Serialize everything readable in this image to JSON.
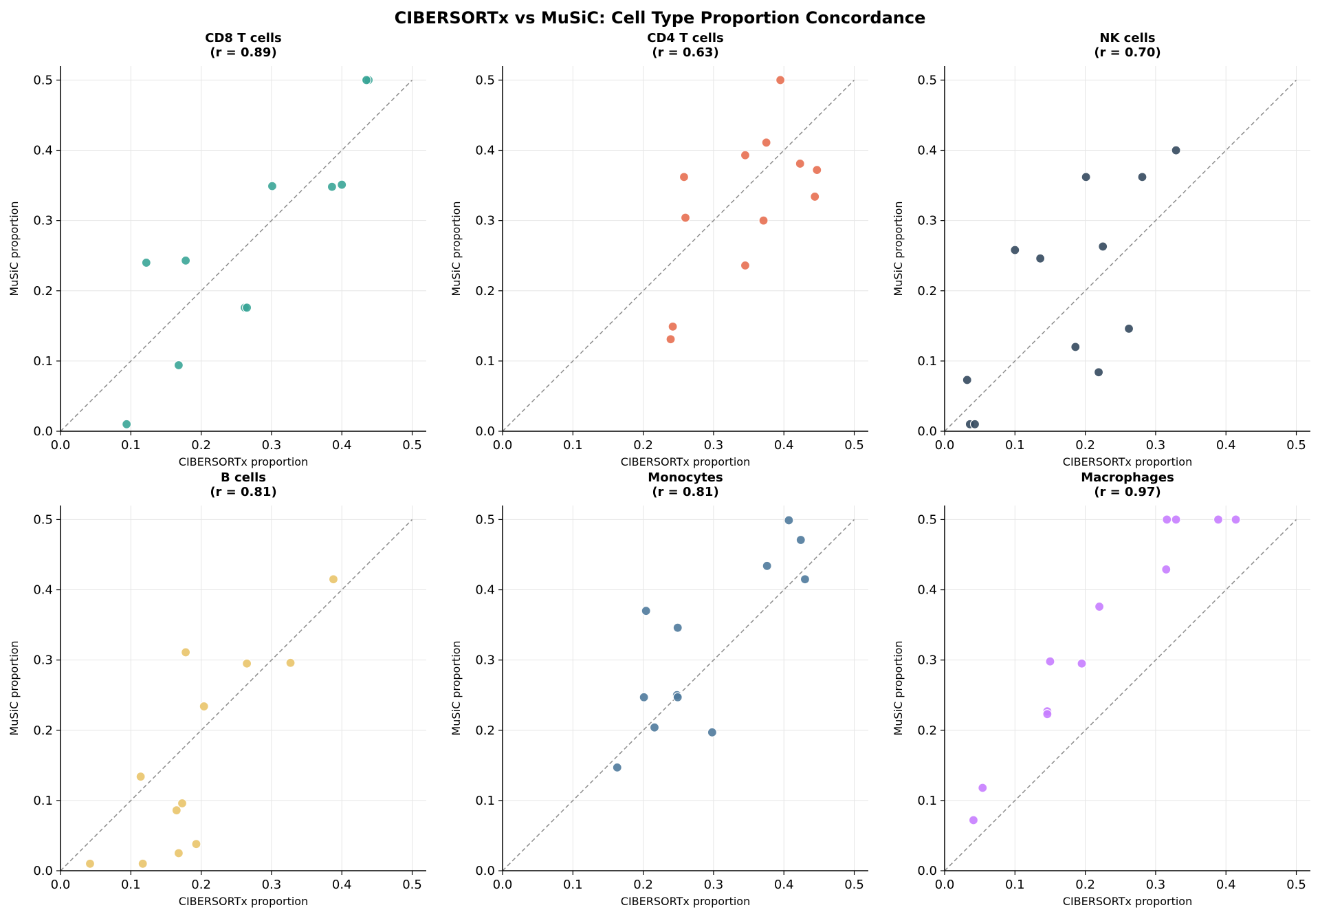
{
  "figure": {
    "title": "CIBERSORTx vs MuSiC: Cell Type Proportion Concordance"
  },
  "chart_data": [
    {
      "type": "scatter",
      "title": "CD8 T cells",
      "subtitle": "(r = 0.89)",
      "xlabel": "CIBERSORTx proportion",
      "ylabel": "MuSiC proportion",
      "xlim": [
        0,
        0.52
      ],
      "ylim": [
        0,
        0.52
      ],
      "xticks": [
        "0.0",
        "0.1",
        "0.2",
        "0.3",
        "0.4",
        "0.5"
      ],
      "yticks": [
        "0.0",
        "0.1",
        "0.2",
        "0.3",
        "0.4",
        "0.5"
      ],
      "grid": true,
      "color": "#3aa597",
      "points": [
        {
          "x": 0.434,
          "y": 0.5
        },
        {
          "x": 0.438,
          "y": 0.5
        },
        {
          "x": 0.435,
          "y": 0.5
        },
        {
          "x": 0.301,
          "y": 0.349
        },
        {
          "x": 0.386,
          "y": 0.348
        },
        {
          "x": 0.4,
          "y": 0.351
        },
        {
          "x": 0.178,
          "y": 0.243
        },
        {
          "x": 0.122,
          "y": 0.24
        },
        {
          "x": 0.262,
          "y": 0.176
        },
        {
          "x": 0.265,
          "y": 0.176
        },
        {
          "x": 0.168,
          "y": 0.094
        },
        {
          "x": 0.094,
          "y": 0.01
        }
      ]
    },
    {
      "type": "scatter",
      "title": "CD4 T cells",
      "subtitle": "(r = 0.63)",
      "xlabel": "CIBERSORTx proportion",
      "ylabel": "MuSiC proportion",
      "xlim": [
        0,
        0.52
      ],
      "ylim": [
        0,
        0.52
      ],
      "xticks": [
        "0.0",
        "0.1",
        "0.2",
        "0.3",
        "0.4",
        "0.5"
      ],
      "yticks": [
        "0.0",
        "0.1",
        "0.2",
        "0.3",
        "0.4",
        "0.5"
      ],
      "grid": true,
      "color": "#e76f51",
      "points": [
        {
          "x": 0.395,
          "y": 0.5
        },
        {
          "x": 0.375,
          "y": 0.411
        },
        {
          "x": 0.345,
          "y": 0.393
        },
        {
          "x": 0.423,
          "y": 0.381
        },
        {
          "x": 0.447,
          "y": 0.372
        },
        {
          "x": 0.258,
          "y": 0.362
        },
        {
          "x": 0.444,
          "y": 0.334
        },
        {
          "x": 0.26,
          "y": 0.304
        },
        {
          "x": 0.371,
          "y": 0.3
        },
        {
          "x": 0.345,
          "y": 0.236
        },
        {
          "x": 0.242,
          "y": 0.149
        },
        {
          "x": 0.239,
          "y": 0.131
        }
      ]
    },
    {
      "type": "scatter",
      "title": "NK cells",
      "subtitle": "(r = 0.70)",
      "xlabel": "CIBERSORTx proportion",
      "ylabel": "MuSiC proportion",
      "xlim": [
        0,
        0.52
      ],
      "ylim": [
        0,
        0.52
      ],
      "xticks": [
        "0.0",
        "0.1",
        "0.2",
        "0.3",
        "0.4",
        "0.5"
      ],
      "yticks": [
        "0.0",
        "0.1",
        "0.2",
        "0.3",
        "0.4",
        "0.5"
      ],
      "grid": true,
      "color": "#34495e",
      "points": [
        {
          "x": 0.329,
          "y": 0.4
        },
        {
          "x": 0.201,
          "y": 0.362
        },
        {
          "x": 0.281,
          "y": 0.362
        },
        {
          "x": 0.225,
          "y": 0.263
        },
        {
          "x": 0.1,
          "y": 0.258
        },
        {
          "x": 0.136,
          "y": 0.246
        },
        {
          "x": 0.262,
          "y": 0.146
        },
        {
          "x": 0.186,
          "y": 0.12
        },
        {
          "x": 0.219,
          "y": 0.084
        },
        {
          "x": 0.032,
          "y": 0.073
        },
        {
          "x": 0.036,
          "y": 0.01
        },
        {
          "x": 0.043,
          "y": 0.01
        }
      ]
    },
    {
      "type": "scatter",
      "title": "B cells",
      "subtitle": "(r = 0.81)",
      "xlabel": "CIBERSORTx proportion",
      "ylabel": "MuSiC proportion",
      "xlim": [
        0,
        0.52
      ],
      "ylim": [
        0,
        0.52
      ],
      "xticks": [
        "0.0",
        "0.1",
        "0.2",
        "0.3",
        "0.4",
        "0.5"
      ],
      "yticks": [
        "0.0",
        "0.1",
        "0.2",
        "0.3",
        "0.4",
        "0.5"
      ],
      "grid": true,
      "color": "#e9c46a",
      "points": [
        {
          "x": 0.388,
          "y": 0.415
        },
        {
          "x": 0.178,
          "y": 0.311
        },
        {
          "x": 0.265,
          "y": 0.295
        },
        {
          "x": 0.327,
          "y": 0.296
        },
        {
          "x": 0.204,
          "y": 0.234
        },
        {
          "x": 0.114,
          "y": 0.134
        },
        {
          "x": 0.173,
          "y": 0.096
        },
        {
          "x": 0.165,
          "y": 0.086
        },
        {
          "x": 0.193,
          "y": 0.038
        },
        {
          "x": 0.168,
          "y": 0.025
        },
        {
          "x": 0.042,
          "y": 0.01
        },
        {
          "x": 0.117,
          "y": 0.01
        }
      ]
    },
    {
      "type": "scatter",
      "title": "Monocytes",
      "subtitle": "(r = 0.81)",
      "xlabel": "CIBERSORTx proportion",
      "ylabel": "MuSiC proportion",
      "xlim": [
        0,
        0.52
      ],
      "ylim": [
        0,
        0.52
      ],
      "xticks": [
        "0.0",
        "0.1",
        "0.2",
        "0.3",
        "0.4",
        "0.5"
      ],
      "yticks": [
        "0.0",
        "0.1",
        "0.2",
        "0.3",
        "0.4",
        "0.5"
      ],
      "grid": true,
      "color": "#4f7a9c",
      "points": [
        {
          "x": 0.407,
          "y": 0.499
        },
        {
          "x": 0.424,
          "y": 0.471
        },
        {
          "x": 0.376,
          "y": 0.434
        },
        {
          "x": 0.43,
          "y": 0.415
        },
        {
          "x": 0.204,
          "y": 0.37
        },
        {
          "x": 0.249,
          "y": 0.346
        },
        {
          "x": 0.248,
          "y": 0.25
        },
        {
          "x": 0.201,
          "y": 0.247
        },
        {
          "x": 0.249,
          "y": 0.247
        },
        {
          "x": 0.216,
          "y": 0.204
        },
        {
          "x": 0.298,
          "y": 0.197
        },
        {
          "x": 0.163,
          "y": 0.147
        }
      ]
    },
    {
      "type": "scatter",
      "title": "Macrophages",
      "subtitle": "(r = 0.97)",
      "xlabel": "CIBERSORTx proportion",
      "ylabel": "MuSiC proportion",
      "xlim": [
        0,
        0.52
      ],
      "ylim": [
        0,
        0.52
      ],
      "xticks": [
        "0.0",
        "0.1",
        "0.2",
        "0.3",
        "0.4",
        "0.5"
      ],
      "yticks": [
        "0.0",
        "0.1",
        "0.2",
        "0.3",
        "0.4",
        "0.5"
      ],
      "grid": true,
      "color": "#c77dff",
      "points": [
        {
          "x": 0.316,
          "y": 0.5
        },
        {
          "x": 0.329,
          "y": 0.5
        },
        {
          "x": 0.389,
          "y": 0.5
        },
        {
          "x": 0.414,
          "y": 0.5
        },
        {
          "x": 0.315,
          "y": 0.429
        },
        {
          "x": 0.22,
          "y": 0.376
        },
        {
          "x": 0.15,
          "y": 0.298
        },
        {
          "x": 0.195,
          "y": 0.295
        },
        {
          "x": 0.146,
          "y": 0.227
        },
        {
          "x": 0.146,
          "y": 0.223
        },
        {
          "x": 0.054,
          "y": 0.118
        },
        {
          "x": 0.041,
          "y": 0.072
        }
      ]
    }
  ]
}
